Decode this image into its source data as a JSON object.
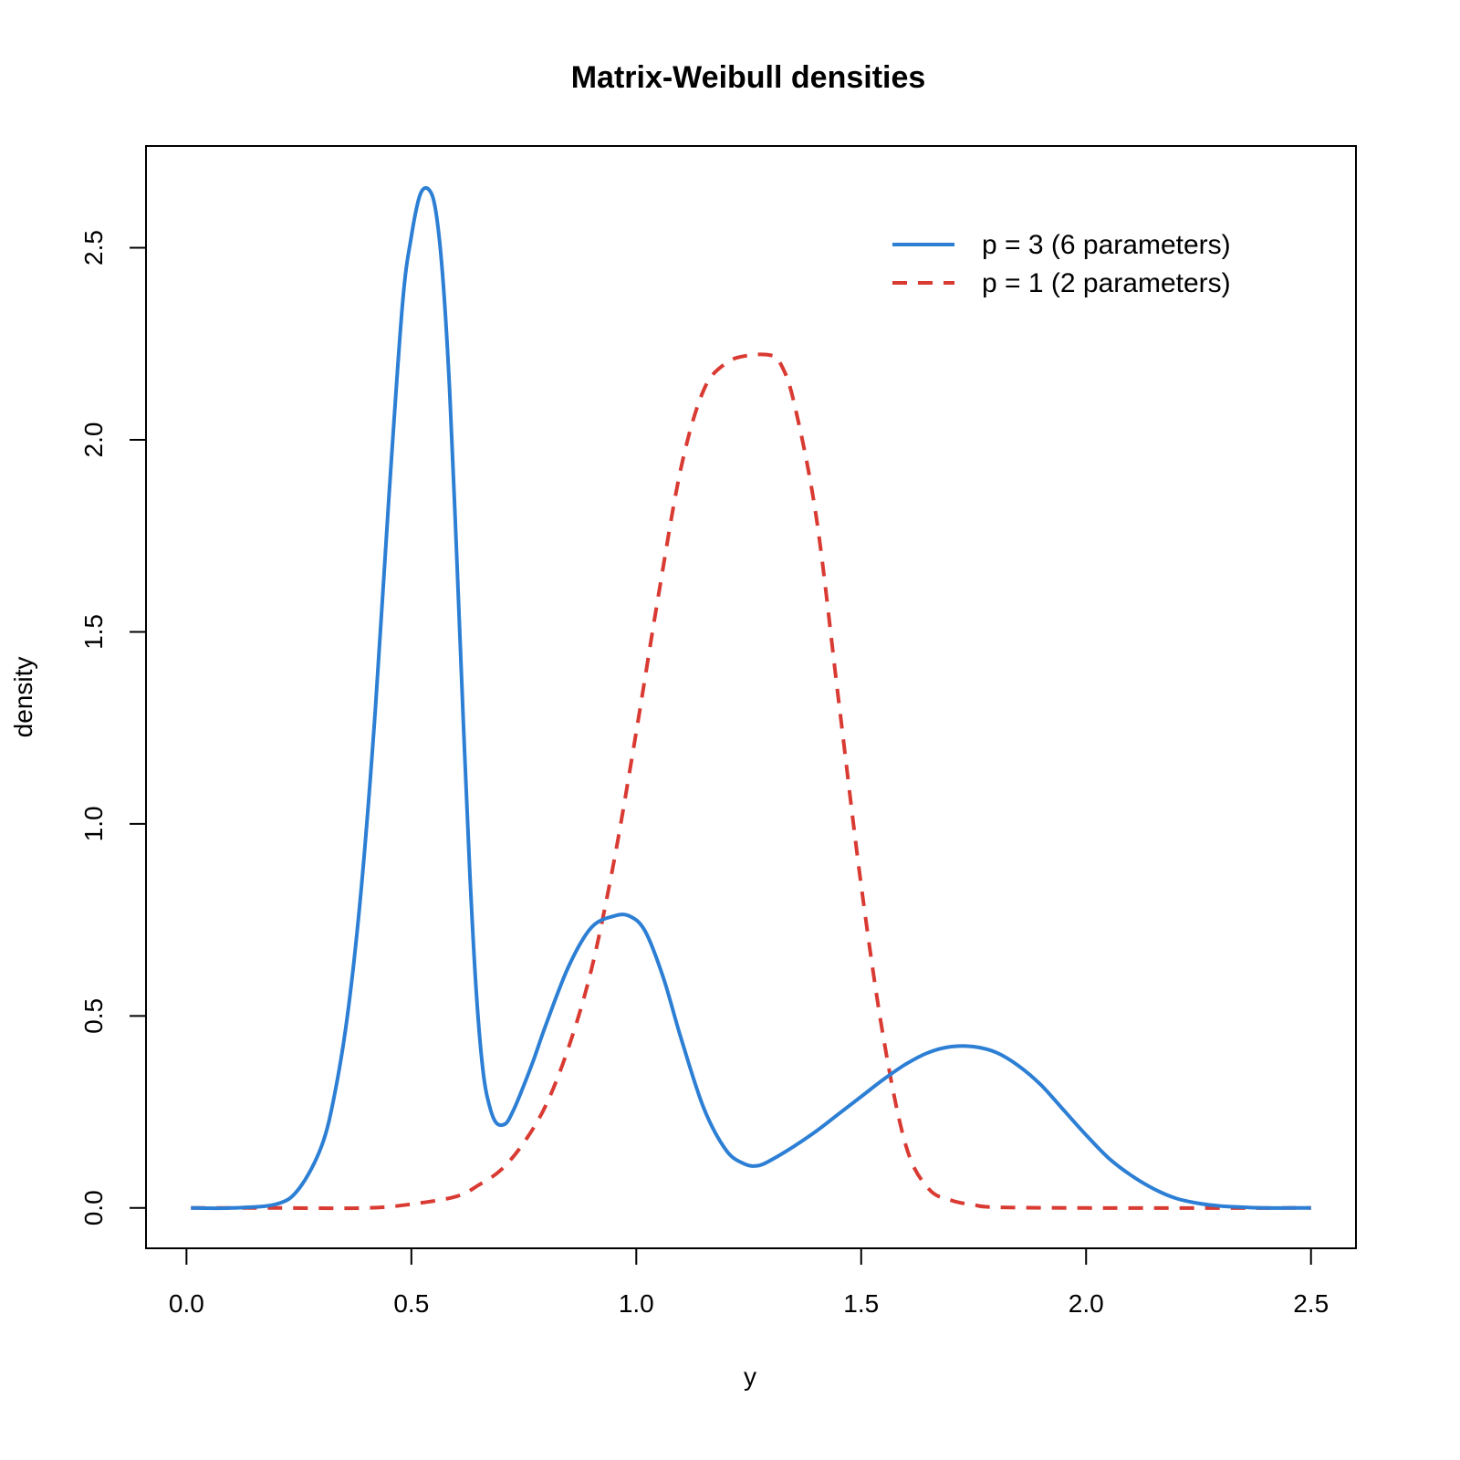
{
  "chart_data": {
    "type": "line",
    "title": "Matrix-Weibull densities",
    "xlabel": "y",
    "ylabel": "density",
    "xlim": [
      -0.09,
      2.6
    ],
    "ylim": [
      -0.105,
      2.765
    ],
    "x_ticks": [
      0.0,
      0.5,
      1.0,
      1.5,
      2.0,
      2.5
    ],
    "x_tick_labels": [
      "0.0",
      "0.5",
      "1.0",
      "1.5",
      "2.0",
      "2.5"
    ],
    "y_ticks": [
      0.0,
      0.5,
      1.0,
      1.5,
      2.0,
      2.5
    ],
    "y_tick_labels": [
      "0.0",
      "0.5",
      "1.0",
      "1.5",
      "2.0",
      "2.5"
    ],
    "grid": false,
    "legend_position": "top-right",
    "series": [
      {
        "name": "p = 3 (6 parameters)",
        "color": "#2c7fd4",
        "dash": "solid",
        "x": [
          0.01,
          0.1,
          0.2,
          0.25,
          0.3,
          0.33,
          0.36,
          0.39,
          0.42,
          0.45,
          0.48,
          0.5,
          0.52,
          0.54,
          0.555,
          0.57,
          0.585,
          0.6,
          0.615,
          0.63,
          0.645,
          0.66,
          0.675,
          0.69,
          0.71,
          0.725,
          0.74,
          0.77,
          0.8,
          0.85,
          0.9,
          0.95,
          0.985,
          1.02,
          1.06,
          1.1,
          1.15,
          1.2,
          1.24,
          1.27,
          1.3,
          1.35,
          1.4,
          1.45,
          1.5,
          1.55,
          1.6,
          1.65,
          1.7,
          1.75,
          1.8,
          1.85,
          1.9,
          1.95,
          2.0,
          2.05,
          2.1,
          2.15,
          2.2,
          2.25,
          2.3,
          2.35,
          2.4,
          2.45,
          2.5
        ],
        "values": [
          0.0,
          0.0,
          0.01,
          0.05,
          0.16,
          0.3,
          0.52,
          0.85,
          1.3,
          1.85,
          2.35,
          2.53,
          2.64,
          2.65,
          2.59,
          2.42,
          2.13,
          1.72,
          1.28,
          0.87,
          0.55,
          0.35,
          0.26,
          0.22,
          0.22,
          0.25,
          0.29,
          0.38,
          0.48,
          0.63,
          0.73,
          0.76,
          0.76,
          0.72,
          0.6,
          0.44,
          0.26,
          0.15,
          0.115,
          0.11,
          0.125,
          0.16,
          0.2,
          0.245,
          0.29,
          0.335,
          0.375,
          0.405,
          0.42,
          0.42,
          0.405,
          0.37,
          0.32,
          0.255,
          0.19,
          0.13,
          0.085,
          0.05,
          0.025,
          0.012,
          0.005,
          0.002,
          0.0,
          0.0,
          0.0
        ]
      },
      {
        "name": "p = 1 (2 parameters)",
        "color": "#d93a32",
        "dash": "dashed",
        "x": [
          0.01,
          0.2,
          0.4,
          0.5,
          0.6,
          0.65,
          0.7,
          0.75,
          0.8,
          0.85,
          0.9,
          0.95,
          1.0,
          1.05,
          1.1,
          1.15,
          1.2,
          1.25,
          1.3,
          1.32,
          1.35,
          1.4,
          1.45,
          1.5,
          1.55,
          1.6,
          1.65,
          1.7,
          1.75,
          1.8,
          2.0,
          2.5
        ],
        "values": [
          0.0,
          0.0,
          0.0,
          0.01,
          0.03,
          0.06,
          0.1,
          0.17,
          0.27,
          0.42,
          0.62,
          0.9,
          1.24,
          1.6,
          1.93,
          2.13,
          2.2,
          2.22,
          2.22,
          2.2,
          2.1,
          1.8,
          1.32,
          0.84,
          0.44,
          0.16,
          0.05,
          0.02,
          0.008,
          0.002,
          0.0,
          0.0
        ]
      }
    ]
  }
}
